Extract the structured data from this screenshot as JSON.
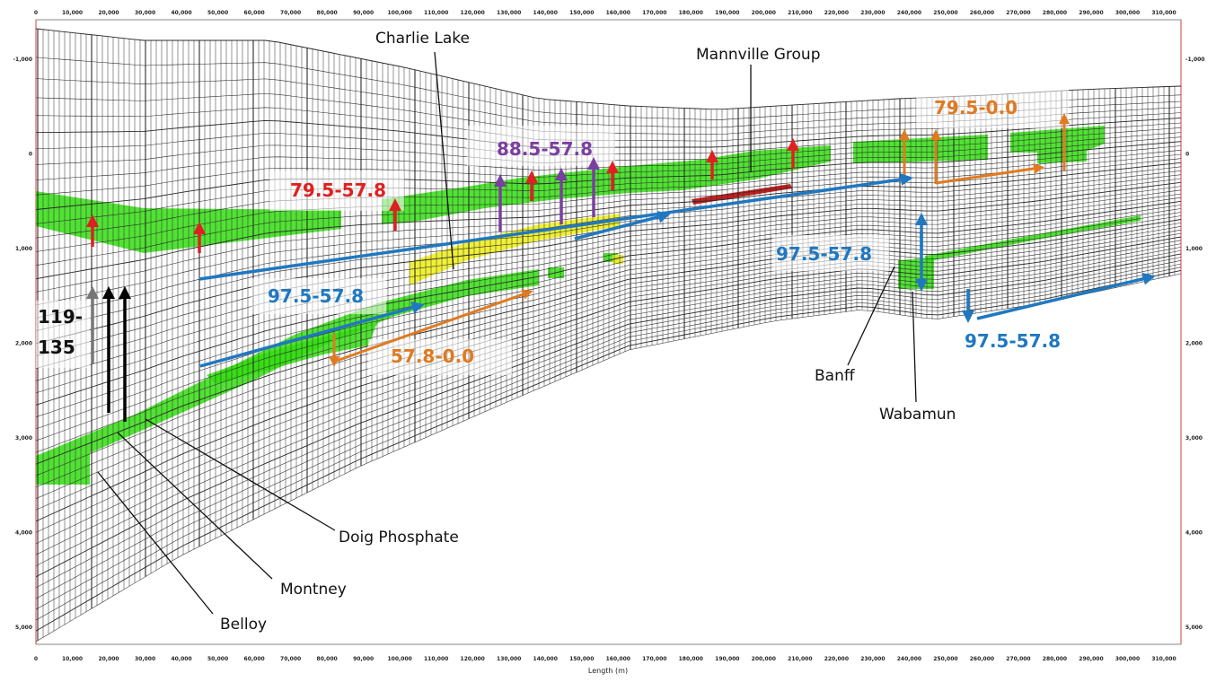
{
  "x_axis": {
    "ticks": [
      "0",
      "10,000",
      "20,000",
      "30,000",
      "40,000",
      "50,000",
      "60,000",
      "70,000",
      "80,000",
      "90,000",
      "100,000",
      "110,000",
      "120,000",
      "130,000",
      "140,000",
      "150,000",
      "160,000",
      "170,000",
      "180,000",
      "190,000",
      "200,000",
      "210,000",
      "220,000",
      "230,000",
      "240,000",
      "250,000",
      "260,000",
      "270,000",
      "280,000",
      "290,000",
      "300,000",
      "310,000"
    ],
    "title": "Length (m)"
  },
  "y_axis": {
    "ticks": [
      "-1,000",
      "0",
      "1,000",
      "2,000",
      "3,000",
      "4,000",
      "5,000"
    ]
  },
  "formations": {
    "charlie_lake": "Charlie Lake",
    "mannville": "Mannville Group",
    "doig": "Doig Phosphate",
    "montney": "Montney",
    "belloy": "Belloy",
    "banff": "Banff",
    "wabamun": "Wabamun"
  },
  "ranges": {
    "r_79_57": "79.5-57.8",
    "r_88_57": "88.5-57.8",
    "r_79_0": "79.5-0.0",
    "r_97_57_a": "97.5-57.8",
    "r_97_57_b": "97.5-57.8",
    "r_97_57_c": "97.5-57.8",
    "r_57_0": "57.8-0.0",
    "r_119_top": "119-",
    "r_119_bottom": "135"
  },
  "colors": {
    "red": "#e02020",
    "purple": "#7a3fa0",
    "orange": "#e07a20",
    "blue": "#1f78c0",
    "black": "#000000",
    "gray": "#777777",
    "green": "#33dd11",
    "yellow": "#eeee22",
    "grid": "#2a2a2a"
  }
}
